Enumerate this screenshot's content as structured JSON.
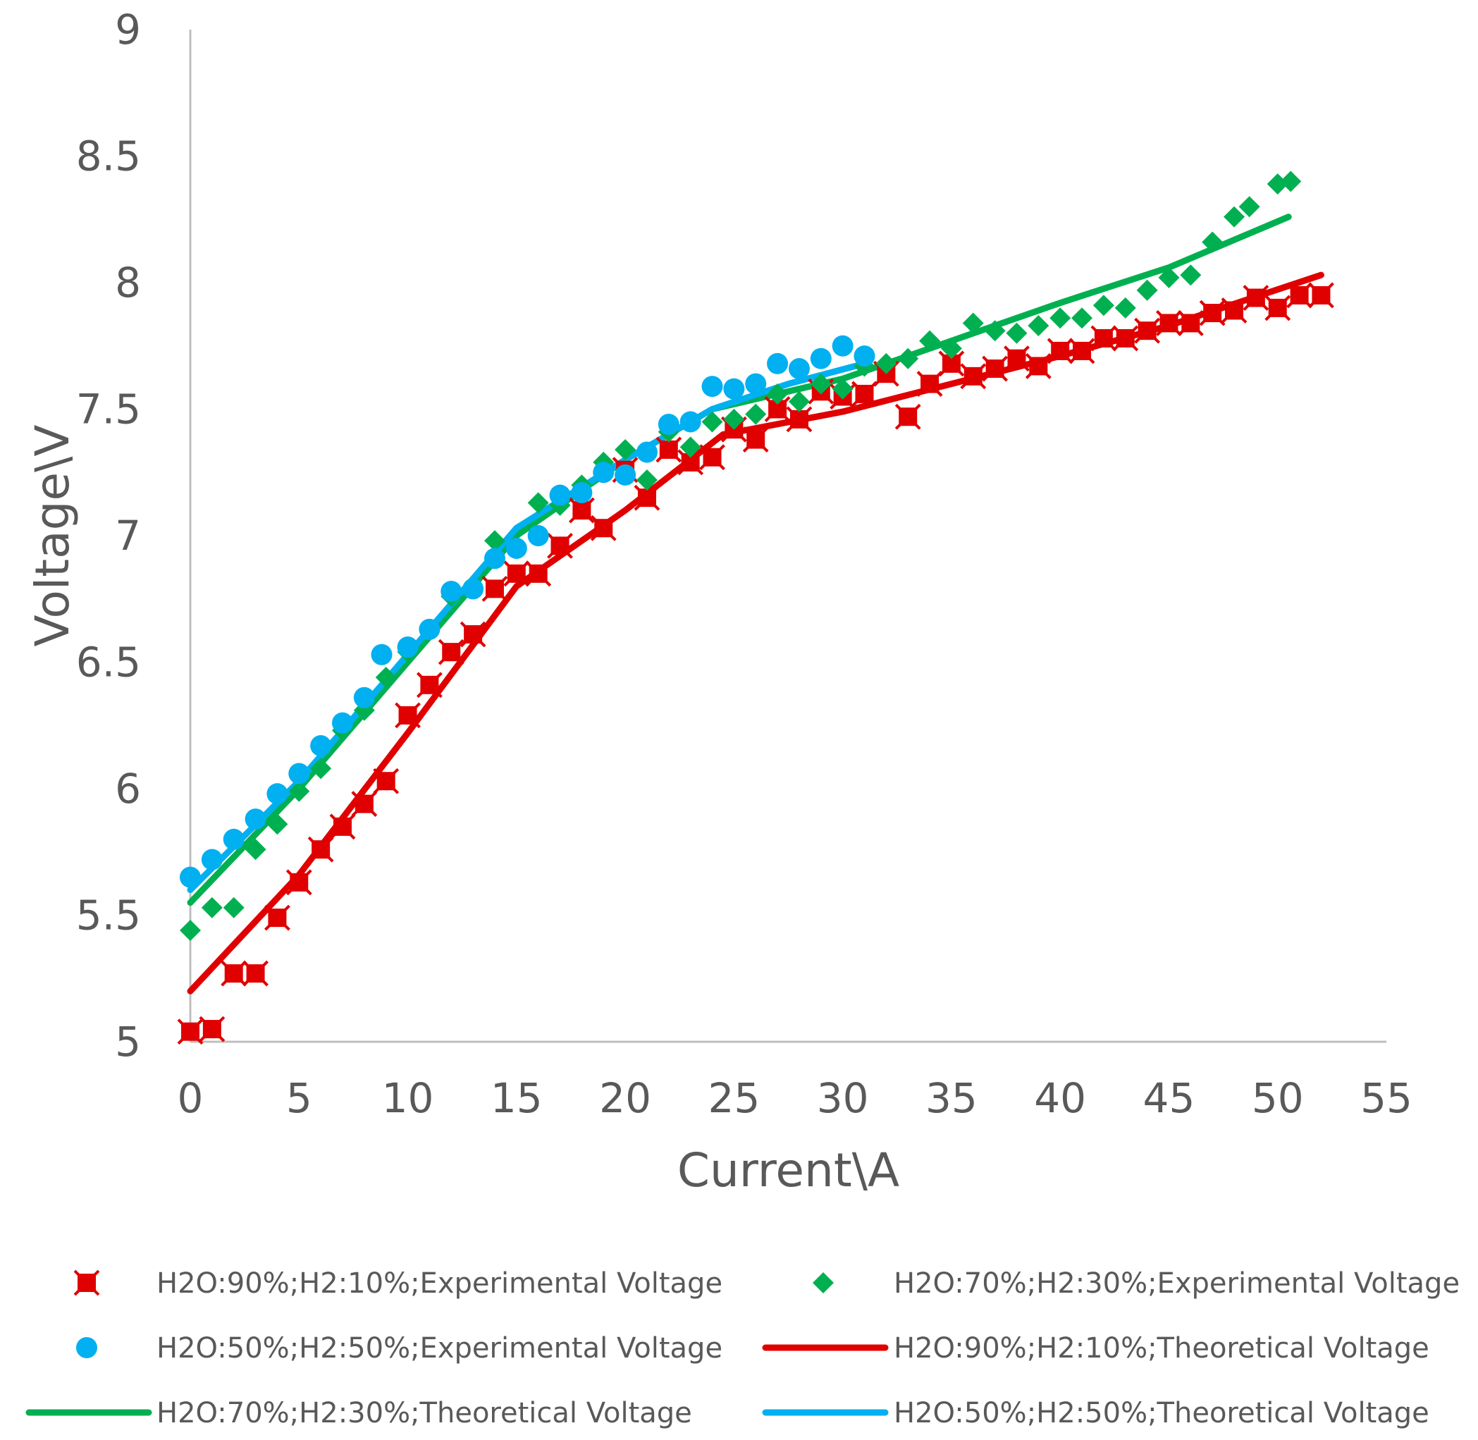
{
  "chart_data": {
    "type": "scatter",
    "title": "",
    "xlabel": "Current\\A",
    "ylabel": "Voltage\\V",
    "xlim": [
      0,
      55
    ],
    "ylim": [
      5,
      9
    ],
    "x_ticks": [
      "0",
      "5",
      "10",
      "15",
      "20",
      "25",
      "30",
      "35",
      "40",
      "45",
      "50",
      "55"
    ],
    "y_ticks": [
      "5",
      "5.5",
      "6",
      "6.5",
      "7",
      "7.5",
      "8",
      "8.5",
      "9"
    ],
    "grid": false,
    "legend_position": "bottom",
    "colors": {
      "red": "#E00000",
      "green": "#00B050",
      "blue": "#00B0F0",
      "axis": "#BFBFBF",
      "text": "#595959"
    },
    "series": [
      {
        "name": "H2O:90%;H2:10%;Experimental Voltage",
        "kind": "scatter",
        "marker": "star",
        "color": "#E00000",
        "points": [
          [
            0,
            5.04
          ],
          [
            1,
            5.05
          ],
          [
            2,
            5.27
          ],
          [
            3,
            5.27
          ],
          [
            4,
            5.49
          ],
          [
            5,
            5.63
          ],
          [
            6,
            5.76
          ],
          [
            7,
            5.85
          ],
          [
            8,
            5.94
          ],
          [
            9,
            6.03
          ],
          [
            10,
            6.29
          ],
          [
            11,
            6.41
          ],
          [
            12,
            6.54
          ],
          [
            13,
            6.61
          ],
          [
            14,
            6.79
          ],
          [
            15,
            6.85
          ],
          [
            16,
            6.85
          ],
          [
            17,
            6.96
          ],
          [
            18,
            7.1
          ],
          [
            19,
            7.03
          ],
          [
            20,
            7.26
          ],
          [
            21,
            7.15
          ],
          [
            22,
            7.34
          ],
          [
            23,
            7.29
          ],
          [
            24,
            7.31
          ],
          [
            25,
            7.42
          ],
          [
            26,
            7.38
          ],
          [
            27,
            7.5
          ],
          [
            28,
            7.46
          ],
          [
            29,
            7.57
          ],
          [
            30,
            7.55
          ],
          [
            31,
            7.56
          ],
          [
            32,
            7.64
          ],
          [
            33,
            7.47
          ],
          [
            34,
            7.6
          ],
          [
            35,
            7.68
          ],
          [
            36,
            7.63
          ],
          [
            37,
            7.66
          ],
          [
            38,
            7.7
          ],
          [
            39,
            7.67
          ],
          [
            40,
            7.73
          ],
          [
            41,
            7.73
          ],
          [
            42,
            7.78
          ],
          [
            43,
            7.78
          ],
          [
            44,
            7.81
          ],
          [
            45,
            7.84
          ],
          [
            46,
            7.84
          ],
          [
            47,
            7.88
          ],
          [
            48,
            7.89
          ],
          [
            49,
            7.94
          ],
          [
            50,
            7.9
          ],
          [
            51,
            7.95
          ],
          [
            52,
            7.95
          ]
        ]
      },
      {
        "name": "H2O:70%;H2:30%;Experimental Voltage",
        "kind": "scatter",
        "marker": "diamond",
        "color": "#00B050",
        "points": [
          [
            0,
            5.44
          ],
          [
            1,
            5.53
          ],
          [
            2,
            5.53
          ],
          [
            3,
            5.76
          ],
          [
            4,
            5.86
          ],
          [
            5,
            5.99
          ],
          [
            6,
            6.08
          ],
          [
            7,
            6.23
          ],
          [
            8,
            6.31
          ],
          [
            9,
            6.44
          ],
          [
            10,
            6.54
          ],
          [
            11,
            6.63
          ],
          [
            12,
            6.76
          ],
          [
            13,
            6.79
          ],
          [
            14,
            6.98
          ],
          [
            15,
            6.96
          ],
          [
            16,
            7.13
          ],
          [
            17,
            7.12
          ],
          [
            18,
            7.2
          ],
          [
            19,
            7.29
          ],
          [
            20,
            7.34
          ],
          [
            21,
            7.22
          ],
          [
            22,
            7.41
          ],
          [
            23,
            7.35
          ],
          [
            24,
            7.45
          ],
          [
            25,
            7.46
          ],
          [
            26,
            7.48
          ],
          [
            27,
            7.56
          ],
          [
            28,
            7.53
          ],
          [
            29,
            7.6
          ],
          [
            30,
            7.58
          ],
          [
            31,
            7.67
          ],
          [
            32,
            7.68
          ],
          [
            33,
            7.7
          ],
          [
            34,
            7.77
          ],
          [
            35,
            7.74
          ],
          [
            36,
            7.84
          ],
          [
            37,
            7.81
          ],
          [
            38,
            7.8
          ],
          [
            39,
            7.83
          ],
          [
            40,
            7.86
          ],
          [
            41,
            7.86
          ],
          [
            42,
            7.91
          ],
          [
            43,
            7.9
          ],
          [
            44,
            7.97
          ],
          [
            45,
            8.02
          ],
          [
            46,
            8.03
          ],
          [
            47,
            8.16
          ],
          [
            48,
            8.26
          ],
          [
            48.7,
            8.3
          ],
          [
            50,
            8.39
          ],
          [
            50.6,
            8.4
          ]
        ]
      },
      {
        "name": "H2O:50%;H2:50%;Experimental Voltage",
        "kind": "scatter",
        "marker": "circle",
        "color": "#00B0F0",
        "points": [
          [
            0,
            5.65
          ],
          [
            1,
            5.72
          ],
          [
            2,
            5.8
          ],
          [
            3,
            5.88
          ],
          [
            4,
            5.98
          ],
          [
            5,
            6.06
          ],
          [
            6,
            6.17
          ],
          [
            7,
            6.26
          ],
          [
            8,
            6.36
          ],
          [
            8.8,
            6.53
          ],
          [
            10,
            6.56
          ],
          [
            11,
            6.63
          ],
          [
            12,
            6.78
          ],
          [
            13,
            6.79
          ],
          [
            14,
            6.91
          ],
          [
            15,
            6.95
          ],
          [
            16,
            7.0
          ],
          [
            17,
            7.16
          ],
          [
            18,
            7.17
          ],
          [
            19,
            7.25
          ],
          [
            20,
            7.24
          ],
          [
            21,
            7.33
          ],
          [
            22,
            7.44
          ],
          [
            23,
            7.45
          ],
          [
            24,
            7.59
          ],
          [
            25,
            7.58
          ],
          [
            26,
            7.6
          ],
          [
            27,
            7.68
          ],
          [
            28,
            7.66
          ],
          [
            29,
            7.7
          ],
          [
            30,
            7.75
          ],
          [
            31,
            7.71
          ]
        ]
      },
      {
        "name": "H2O:90%;H2:10%;Theoretical Voltage",
        "kind": "line",
        "color": "#E00000",
        "points": [
          [
            0,
            5.2
          ],
          [
            5,
            5.66
          ],
          [
            10,
            6.22
          ],
          [
            15,
            6.8
          ],
          [
            20,
            7.1
          ],
          [
            24.5,
            7.4
          ],
          [
            30,
            7.49
          ],
          [
            35,
            7.6
          ],
          [
            40,
            7.71
          ],
          [
            45,
            7.83
          ],
          [
            52,
            8.03
          ]
        ]
      },
      {
        "name": "H2O:70%;H2:30%;Theoretical Voltage",
        "kind": "line",
        "color": "#00B050",
        "points": [
          [
            0,
            5.55
          ],
          [
            5,
            6.0
          ],
          [
            10,
            6.5
          ],
          [
            15,
            7.0
          ],
          [
            20,
            7.3
          ],
          [
            24,
            7.5
          ],
          [
            30,
            7.62
          ],
          [
            35,
            7.77
          ],
          [
            40,
            7.92
          ],
          [
            45,
            8.06
          ],
          [
            50.5,
            8.26
          ]
        ]
      },
      {
        "name": "H2O:50%;H2:50%;Theoretical Voltage",
        "kind": "line",
        "color": "#00B0F0",
        "points": [
          [
            0,
            5.6
          ],
          [
            5,
            6.03
          ],
          [
            10,
            6.53
          ],
          [
            15,
            7.03
          ],
          [
            20,
            7.3
          ],
          [
            24,
            7.5
          ],
          [
            27.5,
            7.6
          ],
          [
            31,
            7.68
          ]
        ]
      }
    ],
    "legend": [
      {
        "label": "H2O:90%;H2:10%;Experimental Voltage",
        "series": 0
      },
      {
        "label": "H2O:70%;H2:30%;Experimental Voltage",
        "series": 1
      },
      {
        "label": "H2O:50%;H2:50%;Experimental Voltage",
        "series": 2
      },
      {
        "label": "H2O:90%;H2:10%;Theoretical Voltage",
        "series": 3
      },
      {
        "label": "H2O:70%;H2:30%;Theoretical Voltage",
        "series": 4
      },
      {
        "label": "H2O:50%;H2:50%;Theoretical Voltage",
        "series": 5
      }
    ]
  }
}
